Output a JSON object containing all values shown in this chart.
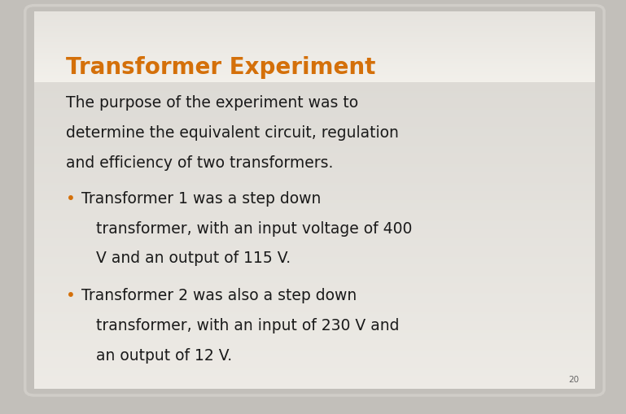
{
  "title": "Transformer Experiment",
  "title_color": "#D4700A",
  "title_fontsize": 20,
  "body_text_color": "#1a1a1a",
  "body_fontsize": 13.5,
  "background_outer": "#c2bfba",
  "background_slide_top": "#e8e6e4",
  "background_slide_bottom": "#d0ceca",
  "background_content_top": "#d8d6d2",
  "background_content_bottom": "#c8c5c0",
  "intro_line1": "The purpose of the experiment was to",
  "intro_line2": "determine the equivalent circuit, regulation",
  "intro_line3": "and efficiency of two transformers.",
  "bullet1_line1": "Transformer 1 was a step down",
  "bullet1_line2": "   transformer, with an input voltage of 400",
  "bullet1_line3": "   V and an output of 115 V.",
  "bullet2_line1": "Transformer 2 was also a step down",
  "bullet2_line2": "   transformer, with an input of 230 V and",
  "bullet2_line3": "   an output of 12 V.",
  "bullet_color": "#D4700A",
  "page_number": "20",
  "figsize": [
    7.69,
    5.1
  ],
  "dpi": 100
}
